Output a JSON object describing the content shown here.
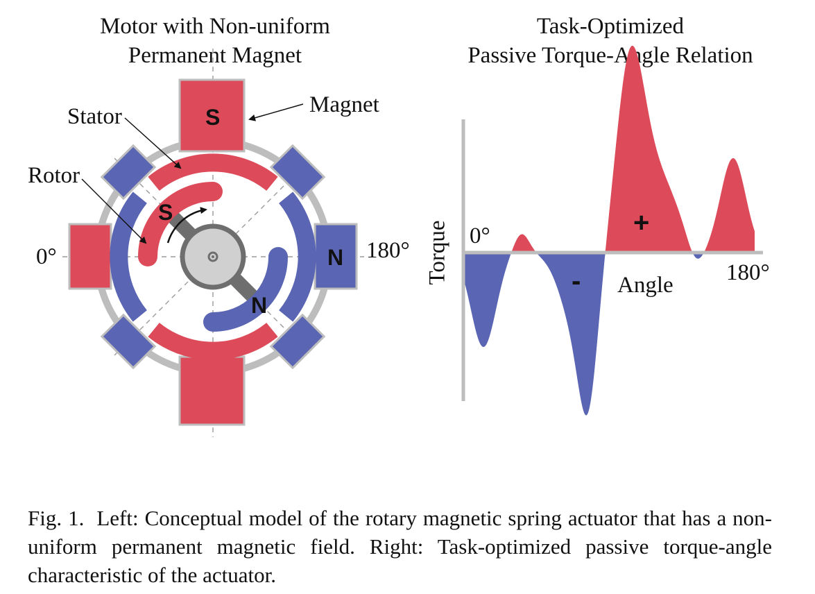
{
  "motor": {
    "title_line1": "Motor with Non-uniform",
    "title_line2": "Permanent Magnet",
    "stator_label": "Stator",
    "rotor_label": "Rotor",
    "magnet_label": "Magnet",
    "angle_zero": "0°",
    "angle_180": "180°",
    "pole_top": "S",
    "pole_right": "N",
    "rotor_pole_s": "S",
    "rotor_pole_n": "N"
  },
  "plot": {
    "title_line1": "Task-Optimized",
    "title_line2": "Passive Torque-Angle Relation",
    "y_label": "Torque",
    "x_label": "Angle",
    "x_start": "0°",
    "x_end": "180°",
    "positive_sign": "+",
    "negative_sign": "-"
  },
  "caption": {
    "label": "Fig. 1.",
    "text": "Left: Conceptual model of the rotary magnetic spring actuator that has a non-uniform permanent magnetic field. Right: Task-optimized passive torque-angle characteristic of the actuator."
  },
  "colors": {
    "red": "#dd4b5a",
    "blue": "#5a65b3",
    "gray": "#bdbdbd",
    "dark_gray": "#6e6e6e",
    "light_gray": "#d0d0d0"
  }
}
